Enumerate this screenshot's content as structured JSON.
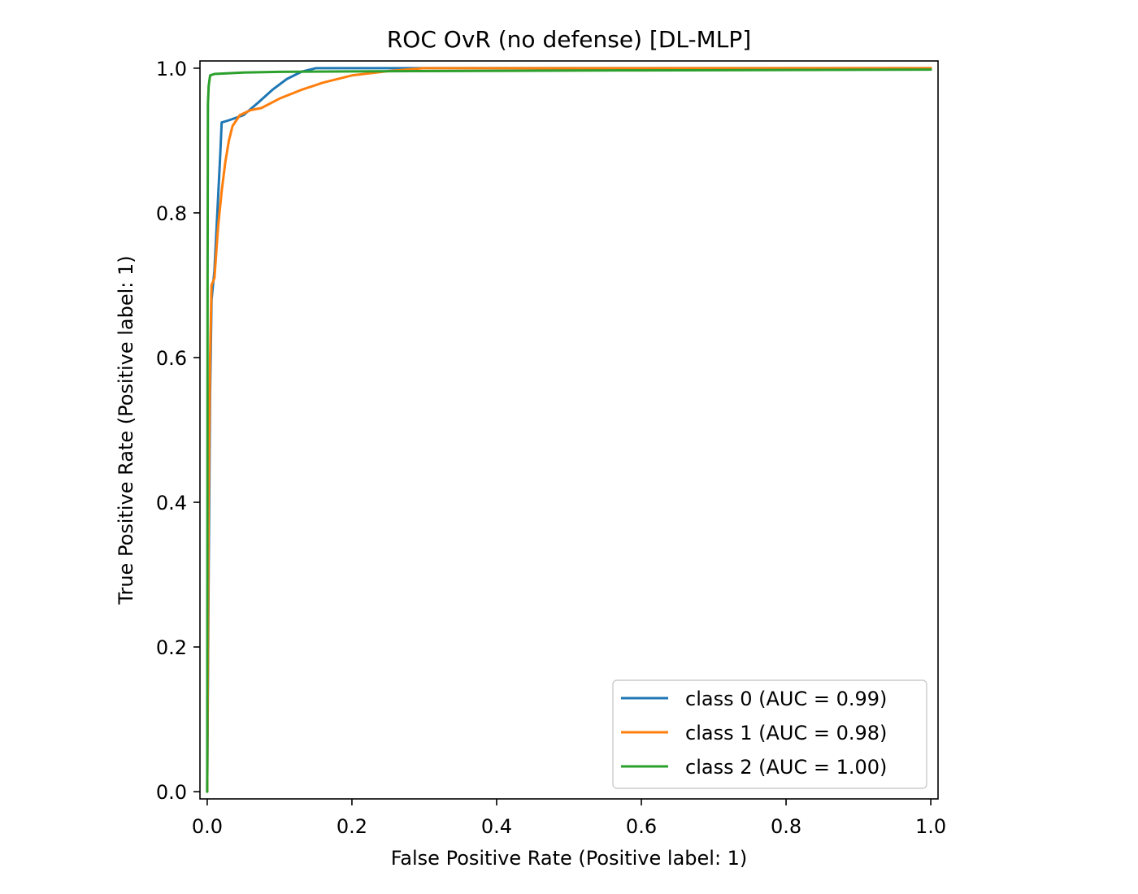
{
  "chart_data": {
    "type": "line",
    "title": "ROC OvR (no defense) [DL-MLP]",
    "xlabel": "False Positive Rate (Positive label: 1)",
    "ylabel": "True Positive Rate (Positive label: 1)",
    "xlim": [
      -0.01,
      1.01
    ],
    "ylim": [
      -0.01,
      1.01
    ],
    "xticks": [
      "0.0",
      "0.2",
      "0.4",
      "0.6",
      "0.8",
      "1.0"
    ],
    "yticks": [
      "0.0",
      "0.2",
      "0.4",
      "0.6",
      "0.8",
      "1.0"
    ],
    "grid": false,
    "legend_position": "lower-right",
    "series": [
      {
        "name": "class 0 (AUC = 0.99)",
        "color": "#1f77b4",
        "points": [
          [
            0.0,
            0.0
          ],
          [
            0.002,
            0.3
          ],
          [
            0.004,
            0.55
          ],
          [
            0.006,
            0.68
          ],
          [
            0.01,
            0.72
          ],
          [
            0.014,
            0.8
          ],
          [
            0.018,
            0.88
          ],
          [
            0.02,
            0.925
          ],
          [
            0.03,
            0.928
          ],
          [
            0.05,
            0.935
          ],
          [
            0.07,
            0.952
          ],
          [
            0.09,
            0.97
          ],
          [
            0.11,
            0.985
          ],
          [
            0.13,
            0.995
          ],
          [
            0.15,
            1.0
          ],
          [
            0.3,
            1.0
          ],
          [
            0.6,
            1.0
          ],
          [
            1.0,
            1.0
          ]
        ]
      },
      {
        "name": "class 1 (AUC = 0.98)",
        "color": "#ff7f0e",
        "points": [
          [
            0.0,
            0.0
          ],
          [
            0.002,
            0.4
          ],
          [
            0.004,
            0.6
          ],
          [
            0.006,
            0.7
          ],
          [
            0.01,
            0.71
          ],
          [
            0.015,
            0.78
          ],
          [
            0.02,
            0.83
          ],
          [
            0.025,
            0.87
          ],
          [
            0.03,
            0.9
          ],
          [
            0.035,
            0.92
          ],
          [
            0.045,
            0.935
          ],
          [
            0.06,
            0.942
          ],
          [
            0.075,
            0.945
          ],
          [
            0.1,
            0.958
          ],
          [
            0.13,
            0.97
          ],
          [
            0.16,
            0.98
          ],
          [
            0.2,
            0.99
          ],
          [
            0.25,
            0.996
          ],
          [
            0.3,
            1.0
          ],
          [
            0.5,
            1.0
          ],
          [
            1.0,
            1.0
          ]
        ]
      },
      {
        "name": "class 2 (AUC = 1.00)",
        "color": "#2ca02c",
        "points": [
          [
            0.0,
            0.0
          ],
          [
            0.0005,
            0.7
          ],
          [
            0.001,
            0.95
          ],
          [
            0.002,
            0.975
          ],
          [
            0.004,
            0.99
          ],
          [
            0.01,
            0.992
          ],
          [
            0.05,
            0.994
          ],
          [
            0.1,
            0.995
          ],
          [
            0.3,
            0.996
          ],
          [
            0.6,
            0.997
          ],
          [
            1.0,
            0.998
          ]
        ]
      }
    ]
  }
}
